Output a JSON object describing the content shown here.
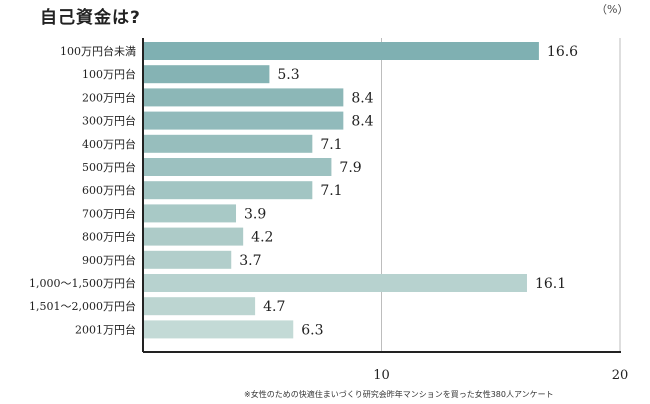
{
  "title": "自己資金は?",
  "unit": "（%）",
  "source": "※女性のための快適住まいづくり研究会昨年マンションを買った女性380人アンケート",
  "chart_data": {
    "type": "bar",
    "orientation": "horizontal",
    "categories": [
      "100万円台未満",
      "100万円台",
      "200万円台",
      "300万円台",
      "400万円台",
      "500万円台",
      "600万円台",
      "700万円台",
      "800万円台",
      "900万円台",
      "1,000～1,500万円台",
      "1,501～2,000万円台",
      "2001万円台"
    ],
    "values": [
      16.6,
      5.3,
      8.4,
      8.4,
      7.1,
      7.9,
      7.1,
      3.9,
      4.2,
      3.7,
      16.1,
      4.7,
      6.3
    ],
    "xlim": [
      0,
      20
    ],
    "xticks": [
      "10",
      "20"
    ],
    "grid": true,
    "colors": [
      "#7fb0b2",
      "#85b3b4",
      "#8cb7b7",
      "#91babb",
      "#97bebd",
      "#9cc1c0",
      "#a2c5c3",
      "#a8c9c6",
      "#adcbc8",
      "#b2cecb",
      "#b7d2cf",
      "#bcd5d1",
      "#c3dad6"
    ]
  }
}
